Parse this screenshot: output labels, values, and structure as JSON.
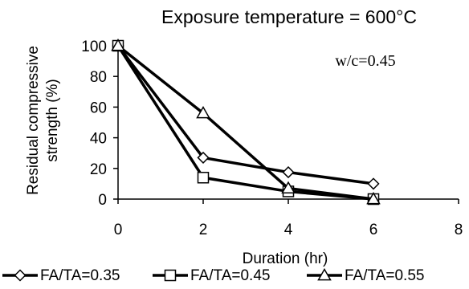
{
  "chart_data": {
    "type": "line",
    "title": "Exposure temperature = 600°C",
    "annotation": "w/c=0.45",
    "xlabel": "Duration (hr)",
    "ylabel_lines": [
      "Residual compressive",
      "strength (%)"
    ],
    "xlim": [
      0,
      8
    ],
    "ylim": [
      0,
      100
    ],
    "xticks": [
      0,
      2,
      4,
      6,
      8
    ],
    "yticks": [
      0,
      20,
      40,
      60,
      80,
      100
    ],
    "grid": false,
    "legend_position": "bottom",
    "series": [
      {
        "name": "FA/TA=0.35",
        "marker": "diamond",
        "x": [
          0,
          2,
          4,
          6
        ],
        "y": [
          100,
          27,
          17.5,
          10
        ]
      },
      {
        "name": "FA/TA=0.45",
        "marker": "square",
        "x": [
          0,
          2,
          4,
          6
        ],
        "y": [
          100,
          14,
          5,
          0
        ]
      },
      {
        "name": "FA/TA=0.55",
        "marker": "triangle",
        "x": [
          0,
          2,
          4,
          6
        ],
        "y": [
          100,
          56,
          7,
          0
        ]
      }
    ],
    "colors": {
      "line": "#000000",
      "marker_fill": "#ffffff"
    }
  }
}
